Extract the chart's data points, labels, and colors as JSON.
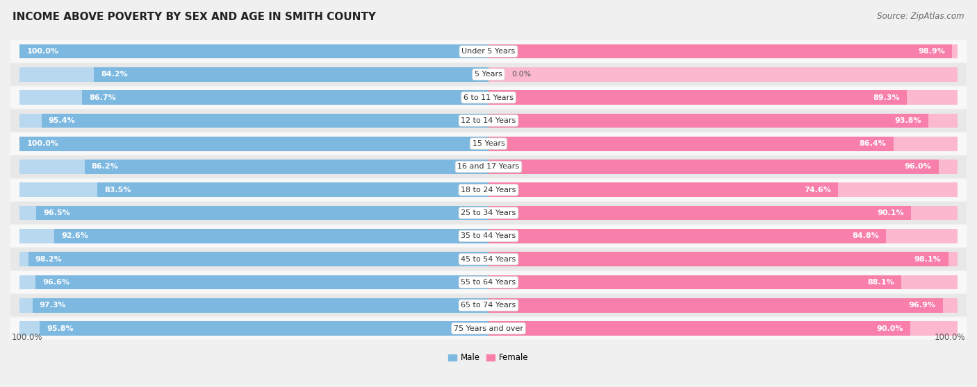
{
  "title": "INCOME ABOVE POVERTY BY SEX AND AGE IN SMITH COUNTY",
  "source": "Source: ZipAtlas.com",
  "categories": [
    "Under 5 Years",
    "5 Years",
    "6 to 11 Years",
    "12 to 14 Years",
    "15 Years",
    "16 and 17 Years",
    "18 to 24 Years",
    "25 to 34 Years",
    "35 to 44 Years",
    "45 to 54 Years",
    "55 to 64 Years",
    "65 to 74 Years",
    "75 Years and over"
  ],
  "male_values": [
    100.0,
    84.2,
    86.7,
    95.4,
    100.0,
    86.2,
    83.5,
    96.5,
    92.6,
    98.2,
    96.6,
    97.3,
    95.8
  ],
  "female_values": [
    98.9,
    0.0,
    89.3,
    93.8,
    86.4,
    96.0,
    74.6,
    90.1,
    84.8,
    98.1,
    88.1,
    96.9,
    90.0
  ],
  "male_color": "#7cb8e0",
  "female_color": "#f77faa",
  "male_color_light": "#b8d8ef",
  "female_color_light": "#fbb8ce",
  "male_label": "Male",
  "female_label": "Female",
  "background_color": "#f0f0f0",
  "row_color_odd": "#e8e8e8",
  "row_color_even": "#f8f8f8",
  "title_fontsize": 11,
  "source_fontsize": 8.5,
  "label_fontsize": 8.0,
  "cat_fontsize": 8.0,
  "axis_label_fontsize": 8.5,
  "xlim": 100.0
}
